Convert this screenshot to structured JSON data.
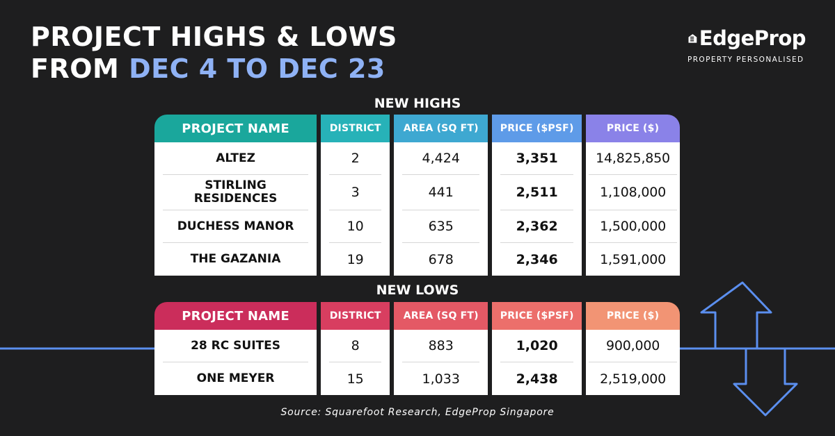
{
  "title": {
    "line1": "PROJECT HIGHS & LOWS",
    "line2_prefix": "FROM ",
    "line2_accent": "DEC 4 TO DEC 23"
  },
  "logo": {
    "brand": "EdgeProp",
    "tagline": "PROPERTY PERSONALISED"
  },
  "colors": {
    "accent": "#8fb2f5",
    "background": "#1e1e1f"
  },
  "icons": {
    "logo_mark": "edgeprop-house-icon",
    "decoration": "up-down-arrow-icon"
  },
  "highs": {
    "section_title": "NEW HIGHS",
    "headers": {
      "name": "PROJECT NAME",
      "district": "DISTRICT",
      "area": "AREA (SQ FT)",
      "psf": "PRICE ($PSF)",
      "price": "PRICE ($)"
    },
    "rows": [
      {
        "name": "ALTEZ",
        "district": "2",
        "area": "4,424",
        "psf": "3,351",
        "price": "14,825,850"
      },
      {
        "name": "STIRLING RESIDENCES",
        "district": "3",
        "area": "441",
        "psf": "2,511",
        "price": "1,108,000"
      },
      {
        "name": "DUCHESS MANOR",
        "district": "10",
        "area": "635",
        "psf": "2,362",
        "price": "1,500,000"
      },
      {
        "name": "THE GAZANIA",
        "district": "19",
        "area": "678",
        "psf": "2,346",
        "price": "1,591,000"
      }
    ]
  },
  "lows": {
    "section_title": "NEW LOWS",
    "headers": {
      "name": "PROJECT NAME",
      "district": "DISTRICT",
      "area": "AREA (SQ FT)",
      "psf": "PRICE ($PSF)",
      "price": "PRICE ($)"
    },
    "rows": [
      {
        "name": "28 RC SUITES",
        "district": "8",
        "area": "883",
        "psf": "1,020",
        "price": "900,000"
      },
      {
        "name": "ONE MEYER",
        "district": "15",
        "area": "1,033",
        "psf": "2,438",
        "price": "2,519,000"
      }
    ]
  },
  "source": "Source: Squarefoot Research, EdgeProp Singapore"
}
